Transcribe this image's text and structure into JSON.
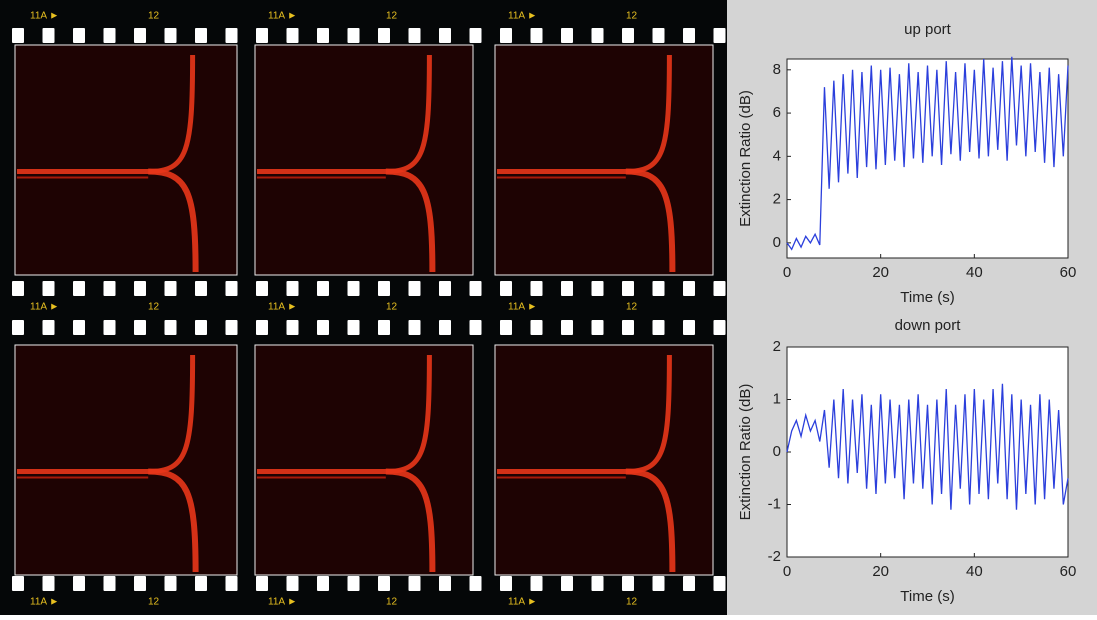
{
  "film_strips": [
    {
      "labels": [
        "11A ►",
        "12",
        "11A ►",
        "12",
        "11A ►",
        "12"
      ]
    },
    {
      "labels": [
        "11A ►",
        "12",
        "11A ►",
        "12",
        "11A ►",
        "12"
      ]
    },
    {
      "labels": [
        "11A ►",
        "12",
        "11A ►",
        "12",
        "11A ►",
        "12"
      ]
    }
  ],
  "chart_data": [
    {
      "type": "line",
      "title": "up port",
      "x_label": "Time (s)",
      "y_label": "Extinction Ratio (dB)",
      "xlim": [
        0,
        60
      ],
      "xticks": [
        0,
        20,
        40,
        60
      ],
      "ylim": [
        -0.7,
        8.5
      ],
      "yticks": [
        0,
        2,
        4,
        6,
        8
      ],
      "x": [
        0,
        1,
        2,
        3,
        4,
        5,
        6,
        7,
        8,
        9,
        10,
        11,
        12,
        13,
        14,
        15,
        16,
        17,
        18,
        19,
        20,
        21,
        22,
        23,
        24,
        25,
        26,
        27,
        28,
        29,
        30,
        31,
        32,
        33,
        34,
        35,
        36,
        37,
        38,
        39,
        40,
        41,
        42,
        43,
        44,
        45,
        46,
        47,
        48,
        49,
        50,
        51,
        52,
        53,
        54,
        55,
        56,
        57,
        58,
        59,
        60
      ],
      "series": [
        {
          "name": "up port",
          "color": "#2b3fdc",
          "values": [
            0,
            -0.3,
            0.2,
            -0.2,
            0.3,
            0,
            0.4,
            -0.1,
            7.2,
            2.5,
            7.5,
            2.8,
            7.8,
            3.2,
            8.0,
            3.0,
            7.9,
            3.5,
            8.2,
            3.4,
            8.0,
            3.6,
            8.1,
            3.8,
            7.8,
            3.5,
            8.3,
            3.9,
            7.9,
            3.7,
            8.2,
            4.0,
            8.0,
            3.6,
            8.4,
            4.1,
            7.9,
            3.8,
            8.3,
            4.2,
            8.0,
            3.9,
            8.5,
            4.0,
            8.1,
            4.3,
            8.4,
            3.8,
            8.6,
            4.5,
            8.2,
            4.0,
            8.3,
            4.2,
            7.9,
            3.7,
            8.1,
            3.5,
            7.8,
            4.0,
            8.2
          ]
        }
      ]
    },
    {
      "type": "line",
      "title": "down port",
      "x_label": "Time (s)",
      "y_label": "Extinction Ratio (dB)",
      "xlim": [
        0,
        60
      ],
      "xticks": [
        0,
        20,
        40,
        60
      ],
      "ylim": [
        -2,
        2
      ],
      "yticks": [
        -2,
        -1,
        0,
        1,
        2
      ],
      "x": [
        0,
        1,
        2,
        3,
        4,
        5,
        6,
        7,
        8,
        9,
        10,
        11,
        12,
        13,
        14,
        15,
        16,
        17,
        18,
        19,
        20,
        21,
        22,
        23,
        24,
        25,
        26,
        27,
        28,
        29,
        30,
        31,
        32,
        33,
        34,
        35,
        36,
        37,
        38,
        39,
        40,
        41,
        42,
        43,
        44,
        45,
        46,
        47,
        48,
        49,
        50,
        51,
        52,
        53,
        54,
        55,
        56,
        57,
        58,
        59,
        60
      ],
      "series": [
        {
          "name": "down port",
          "color": "#2b3fdc",
          "values": [
            0,
            0.4,
            0.6,
            0.3,
            0.7,
            0.4,
            0.6,
            0.2,
            0.8,
            -0.3,
            1.0,
            -0.5,
            1.2,
            -0.6,
            1.0,
            -0.4,
            1.1,
            -0.7,
            0.9,
            -0.8,
            1.1,
            -0.6,
            1.0,
            -0.5,
            0.9,
            -0.9,
            1.0,
            -0.6,
            1.1,
            -0.7,
            0.9,
            -1.0,
            1.0,
            -0.8,
            1.2,
            -1.1,
            0.9,
            -0.7,
            1.1,
            -1.0,
            1.2,
            -0.8,
            1.0,
            -0.9,
            1.2,
            -0.6,
            1.3,
            -0.9,
            1.1,
            -1.1,
            1.0,
            -0.8,
            0.9,
            -1.0,
            1.1,
            -0.9,
            1.0,
            -0.7,
            0.8,
            -1.0,
            -0.5
          ]
        }
      ]
    }
  ]
}
